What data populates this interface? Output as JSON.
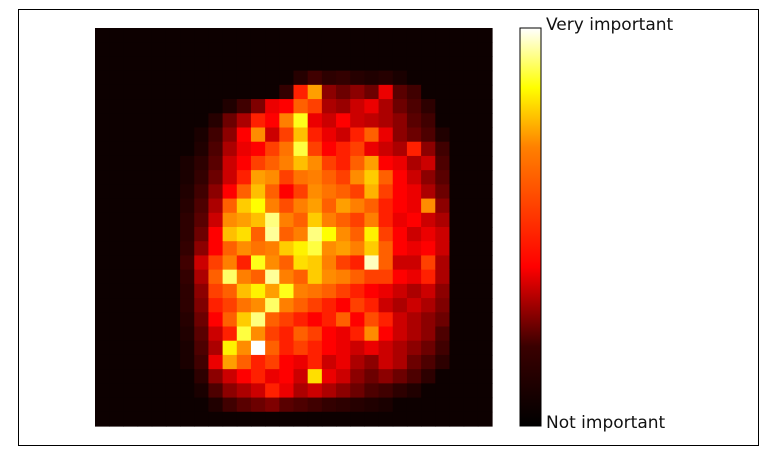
{
  "chart_data": {
    "type": "heatmap",
    "rows": 28,
    "cols": 28,
    "colormap": "hot",
    "colormap_stops": [
      "#000000",
      "#3a0000",
      "#ff0000",
      "#ff8000",
      "#ffff00",
      "#ffffff"
    ],
    "colorbar": {
      "top_label": "Very important",
      "bottom_label": "Not important",
      "range": [
        0,
        1
      ]
    },
    "grid": false,
    "values": [
      [
        0,
        0,
        0,
        0,
        0,
        0,
        0,
        0,
        0,
        0,
        0,
        0,
        0,
        0,
        0,
        0,
        0,
        0,
        0,
        0,
        0,
        0,
        0,
        0,
        0,
        0,
        0,
        0
      ],
      [
        0,
        0,
        0,
        0,
        0,
        0,
        0,
        0,
        0,
        0,
        0,
        0,
        0,
        0,
        0,
        0,
        0,
        0,
        0,
        0,
        0,
        0,
        0,
        0,
        0,
        0,
        0,
        0
      ],
      [
        0,
        0,
        0,
        0,
        0,
        0,
        0,
        0,
        0,
        0,
        0,
        0,
        0,
        0,
        0,
        0,
        0,
        0,
        0,
        0,
        0,
        0,
        0,
        0,
        0,
        0,
        0,
        0
      ],
      [
        0,
        0,
        0,
        0,
        0,
        0,
        0,
        0,
        0,
        0,
        0,
        0,
        0,
        0,
        0.04,
        0.08,
        0.05,
        0.06,
        0.04,
        0.03,
        0.04,
        0.02,
        0,
        0,
        0,
        0,
        0,
        0
      ],
      [
        0,
        0,
        0,
        0,
        0,
        0,
        0,
        0,
        0,
        0,
        0,
        0,
        0,
        0.06,
        0.45,
        0.65,
        0.2,
        0.15,
        0.2,
        0.15,
        0.35,
        0.12,
        0.08,
        0,
        0,
        0,
        0,
        0
      ],
      [
        0,
        0,
        0,
        0,
        0,
        0,
        0,
        0,
        0,
        0.03,
        0.08,
        0.18,
        0.35,
        0.4,
        0.55,
        0.5,
        0.25,
        0.22,
        0.3,
        0.35,
        0.25,
        0.15,
        0.1,
        0.05,
        0,
        0,
        0,
        0
      ],
      [
        0,
        0,
        0,
        0,
        0,
        0,
        0,
        0,
        0.04,
        0.15,
        0.25,
        0.45,
        0.4,
        0.6,
        0.82,
        0.35,
        0.3,
        0.4,
        0.3,
        0.28,
        0.25,
        0.2,
        0.12,
        0.08,
        0,
        0,
        0,
        0
      ],
      [
        0,
        0,
        0,
        0,
        0,
        0,
        0,
        0.02,
        0.08,
        0.2,
        0.4,
        0.62,
        0.3,
        0.5,
        0.7,
        0.45,
        0.35,
        0.3,
        0.45,
        0.55,
        0.35,
        0.2,
        0.15,
        0.1,
        0.03,
        0,
        0,
        0
      ],
      [
        0,
        0,
        0,
        0,
        0,
        0,
        0,
        0.03,
        0.1,
        0.25,
        0.35,
        0.4,
        0.5,
        0.58,
        0.85,
        0.5,
        0.4,
        0.45,
        0.5,
        0.35,
        0.3,
        0.25,
        0.45,
        0.2,
        0.08,
        0,
        0,
        0
      ],
      [
        0,
        0,
        0,
        0,
        0,
        0,
        0.02,
        0.05,
        0.12,
        0.3,
        0.4,
        0.5,
        0.55,
        0.6,
        0.7,
        0.62,
        0.5,
        0.45,
        0.55,
        0.65,
        0.4,
        0.35,
        0.25,
        0.3,
        0.1,
        0,
        0,
        0
      ],
      [
        0,
        0,
        0,
        0,
        0,
        0,
        0.02,
        0.06,
        0.15,
        0.3,
        0.45,
        0.65,
        0.62,
        0.5,
        0.58,
        0.6,
        0.55,
        0.5,
        0.62,
        0.72,
        0.55,
        0.4,
        0.3,
        0.2,
        0.12,
        0,
        0,
        0
      ],
      [
        0,
        0,
        0,
        0,
        0,
        0,
        0.03,
        0.08,
        0.2,
        0.4,
        0.55,
        0.7,
        0.55,
        0.4,
        0.5,
        0.62,
        0.58,
        0.55,
        0.5,
        0.68,
        0.5,
        0.4,
        0.35,
        0.25,
        0.15,
        0,
        0,
        0
      ],
      [
        0,
        0,
        0,
        0,
        0,
        0,
        0.04,
        0.1,
        0.25,
        0.55,
        0.72,
        0.8,
        0.6,
        0.52,
        0.6,
        0.65,
        0.55,
        0.65,
        0.6,
        0.55,
        0.45,
        0.4,
        0.35,
        0.62,
        0.2,
        0,
        0,
        0
      ],
      [
        0,
        0,
        0,
        0,
        0,
        0,
        0.05,
        0.12,
        0.3,
        0.62,
        0.65,
        0.7,
        0.9,
        0.6,
        0.55,
        0.72,
        0.6,
        0.55,
        0.5,
        0.6,
        0.45,
        0.35,
        0.4,
        0.3,
        0.25,
        0,
        0,
        0
      ],
      [
        0,
        0,
        0,
        0,
        0,
        0,
        0.05,
        0.15,
        0.38,
        0.7,
        0.75,
        0.55,
        0.92,
        0.55,
        0.6,
        0.9,
        0.8,
        0.62,
        0.55,
        0.78,
        0.5,
        0.4,
        0.3,
        0.35,
        0.3,
        0,
        0,
        0
      ],
      [
        0,
        0,
        0,
        0,
        0,
        0,
        0.06,
        0.2,
        0.4,
        0.55,
        0.62,
        0.58,
        0.6,
        0.72,
        0.78,
        0.85,
        0.62,
        0.65,
        0.6,
        0.72,
        0.55,
        0.4,
        0.35,
        0.4,
        0.3,
        0,
        0,
        0
      ],
      [
        0,
        0,
        0,
        0,
        0,
        0,
        0.08,
        0.3,
        0.5,
        0.6,
        0.45,
        0.82,
        0.62,
        0.55,
        0.75,
        0.72,
        0.6,
        0.5,
        0.45,
        0.95,
        0.55,
        0.3,
        0.3,
        0.5,
        0.25,
        0,
        0,
        0
      ],
      [
        0,
        0,
        0,
        0,
        0,
        0,
        0.06,
        0.25,
        0.55,
        0.88,
        0.6,
        0.55,
        0.92,
        0.6,
        0.55,
        0.72,
        0.62,
        0.6,
        0.55,
        0.5,
        0.5,
        0.4,
        0.35,
        0.45,
        0.25,
        0,
        0,
        0
      ],
      [
        0,
        0,
        0,
        0,
        0,
        0,
        0.05,
        0.2,
        0.5,
        0.55,
        0.7,
        0.78,
        0.65,
        0.82,
        0.6,
        0.58,
        0.55,
        0.5,
        0.45,
        0.4,
        0.35,
        0.3,
        0.25,
        0.3,
        0.2,
        0,
        0,
        0
      ],
      [
        0,
        0,
        0,
        0,
        0,
        0,
        0.05,
        0.18,
        0.45,
        0.5,
        0.58,
        0.62,
        0.88,
        0.6,
        0.55,
        0.5,
        0.45,
        0.4,
        0.5,
        0.45,
        0.3,
        0.25,
        0.3,
        0.25,
        0.18,
        0,
        0,
        0
      ],
      [
        0,
        0,
        0,
        0,
        0,
        0,
        0.04,
        0.15,
        0.4,
        0.55,
        0.72,
        0.9,
        0.55,
        0.5,
        0.45,
        0.4,
        0.45,
        0.55,
        0.4,
        0.52,
        0.45,
        0.3,
        0.25,
        0.2,
        0.15,
        0,
        0,
        0
      ],
      [
        0,
        0,
        0,
        0,
        0,
        0,
        0.03,
        0.12,
        0.3,
        0.45,
        0.85,
        0.62,
        0.5,
        0.45,
        0.55,
        0.5,
        0.4,
        0.35,
        0.45,
        0.62,
        0.4,
        0.3,
        0.25,
        0.2,
        0.1,
        0,
        0,
        0
      ],
      [
        0,
        0,
        0,
        0,
        0,
        0,
        0.02,
        0.1,
        0.25,
        0.78,
        0.62,
        1.0,
        0.55,
        0.45,
        0.5,
        0.45,
        0.4,
        0.35,
        0.3,
        0.35,
        0.3,
        0.25,
        0.2,
        0.15,
        0.08,
        0,
        0,
        0
      ],
      [
        0,
        0,
        0,
        0,
        0,
        0,
        0.02,
        0.08,
        0.35,
        0.65,
        0.55,
        0.45,
        0.5,
        0.4,
        0.35,
        0.45,
        0.3,
        0.35,
        0.25,
        0.2,
        0.3,
        0.25,
        0.15,
        0.1,
        0.05,
        0,
        0,
        0
      ],
      [
        0,
        0,
        0,
        0,
        0,
        0,
        0,
        0.05,
        0.2,
        0.3,
        0.4,
        0.45,
        0.35,
        0.4,
        0.3,
        0.75,
        0.35,
        0.3,
        0.2,
        0.15,
        0.2,
        0.15,
        0.1,
        0.05,
        0,
        0,
        0,
        0
      ],
      [
        0,
        0,
        0,
        0,
        0,
        0,
        0,
        0.02,
        0.1,
        0.2,
        0.25,
        0.3,
        0.45,
        0.35,
        0.25,
        0.3,
        0.25,
        0.2,
        0.15,
        0.1,
        0.08,
        0.05,
        0.03,
        0,
        0,
        0,
        0,
        0
      ],
      [
        0,
        0,
        0,
        0,
        0,
        0,
        0,
        0,
        0.03,
        0.08,
        0.12,
        0.15,
        0.18,
        0.12,
        0.1,
        0.08,
        0.06,
        0.05,
        0.04,
        0.03,
        0.02,
        0,
        0,
        0,
        0,
        0,
        0,
        0
      ],
      [
        0,
        0,
        0,
        0,
        0,
        0,
        0,
        0,
        0,
        0,
        0,
        0,
        0,
        0,
        0,
        0,
        0,
        0,
        0,
        0,
        0,
        0,
        0,
        0,
        0,
        0,
        0,
        0
      ]
    ]
  }
}
